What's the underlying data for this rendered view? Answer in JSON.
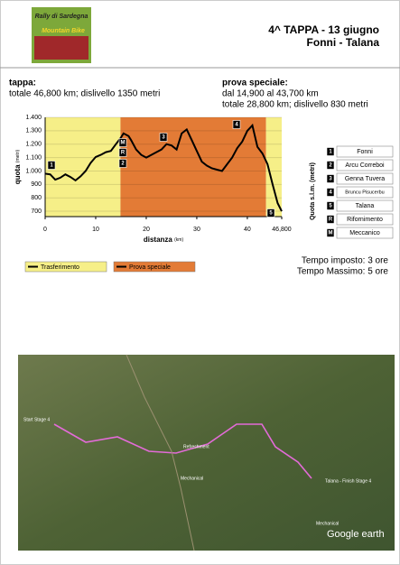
{
  "header": {
    "logo": [
      "Rally di Sardegna",
      "Mountain Bike"
    ],
    "title": "4^ TAPPA - 13 giugno",
    "subtitle": "Fonni - Talana"
  },
  "info": {
    "tappa_label": "tappa:",
    "tappa_text": "totale 46,800 km; dislivello 1350 metri",
    "ps_label": "prova speciale:",
    "ps_lines": [
      "dal 14,900 al 43,700 km",
      "totale 28,800 km; dislivello 830 metri"
    ]
  },
  "chart_data": {
    "type": "line",
    "y_label": "quota",
    "y_unit": "(metri)",
    "x_label": "distanza",
    "x_unit": "(km)",
    "x": [
      0,
      1,
      2,
      3,
      4,
      5,
      6,
      7,
      8,
      9,
      10,
      11,
      12,
      13,
      14,
      15,
      15.5,
      16.5,
      17,
      18,
      19,
      20,
      21,
      22,
      23,
      24,
      25,
      26,
      27,
      28,
      29,
      30,
      31,
      32,
      33,
      34,
      35,
      36,
      37,
      38,
      39,
      40,
      41,
      42,
      43,
      44,
      45,
      46,
      46.8
    ],
    "values": [
      980,
      975,
      935,
      950,
      975,
      955,
      930,
      960,
      1000,
      1060,
      1105,
      1120,
      1140,
      1150,
      1200,
      1250,
      1280,
      1260,
      1230,
      1160,
      1120,
      1100,
      1120,
      1140,
      1160,
      1200,
      1190,
      1160,
      1280,
      1310,
      1230,
      1150,
      1070,
      1040,
      1020,
      1010,
      1000,
      1050,
      1100,
      1170,
      1220,
      1300,
      1340,
      1180,
      1130,
      1050,
      900,
      760,
      700
    ],
    "color": "#000000",
    "bands": [
      {
        "start": 0,
        "end": 14.9,
        "color": "#f6ef88"
      },
      {
        "start": 14.9,
        "end": 43.7,
        "color": "#e37b36"
      },
      {
        "start": 43.7,
        "end": 46.8,
        "color": "#f6ef88"
      }
    ],
    "legend": [
      {
        "name": "Trasferimento",
        "color": "#f6ef88"
      },
      {
        "name": "Prova speciale",
        "color": "#e37b36"
      }
    ],
    "xlim": [
      0,
      46.8
    ],
    "xticks": [
      0,
      10,
      20,
      30,
      40,
      {
        "value": 46.8,
        "label": "46,800"
      }
    ],
    "ylim": [
      660,
      1400
    ],
    "yticks": [
      700,
      800,
      900,
      {
        "value": 1000,
        "label": "1.000"
      },
      {
        "value": 1100,
        "label": "1.100"
      },
      {
        "value": 1200,
        "label": "1.200"
      },
      {
        "value": 1300,
        "label": "1.300"
      },
      {
        "value": 1400,
        "label": "1.400"
      }
    ],
    "grid": true
  },
  "legend": {
    "title": "Quota s.l.m. (metri)",
    "items": [
      {
        "key": "1",
        "name": "Fonni"
      },
      {
        "key": "2",
        "name": "Arcu Correboi"
      },
      {
        "key": "3",
        "name": "Genna Tuvera"
      },
      {
        "key": "4",
        "name": "Bruncu Pisucerbu"
      },
      {
        "key": "5",
        "name": "Talana"
      },
      {
        "key": "R",
        "name": "Rifornimento"
      },
      {
        "key": "M",
        "name": "Meccanico"
      }
    ]
  },
  "times": [
    "Tempo imposto: 3 ore",
    "Tempo Massimo: 5 ore"
  ],
  "map": {
    "labels": [
      "Start Stage 4",
      "Refreshment",
      "Mechanical",
      "Mechanical",
      "Talana - Finish Stage 4",
      "Google earth"
    ]
  }
}
